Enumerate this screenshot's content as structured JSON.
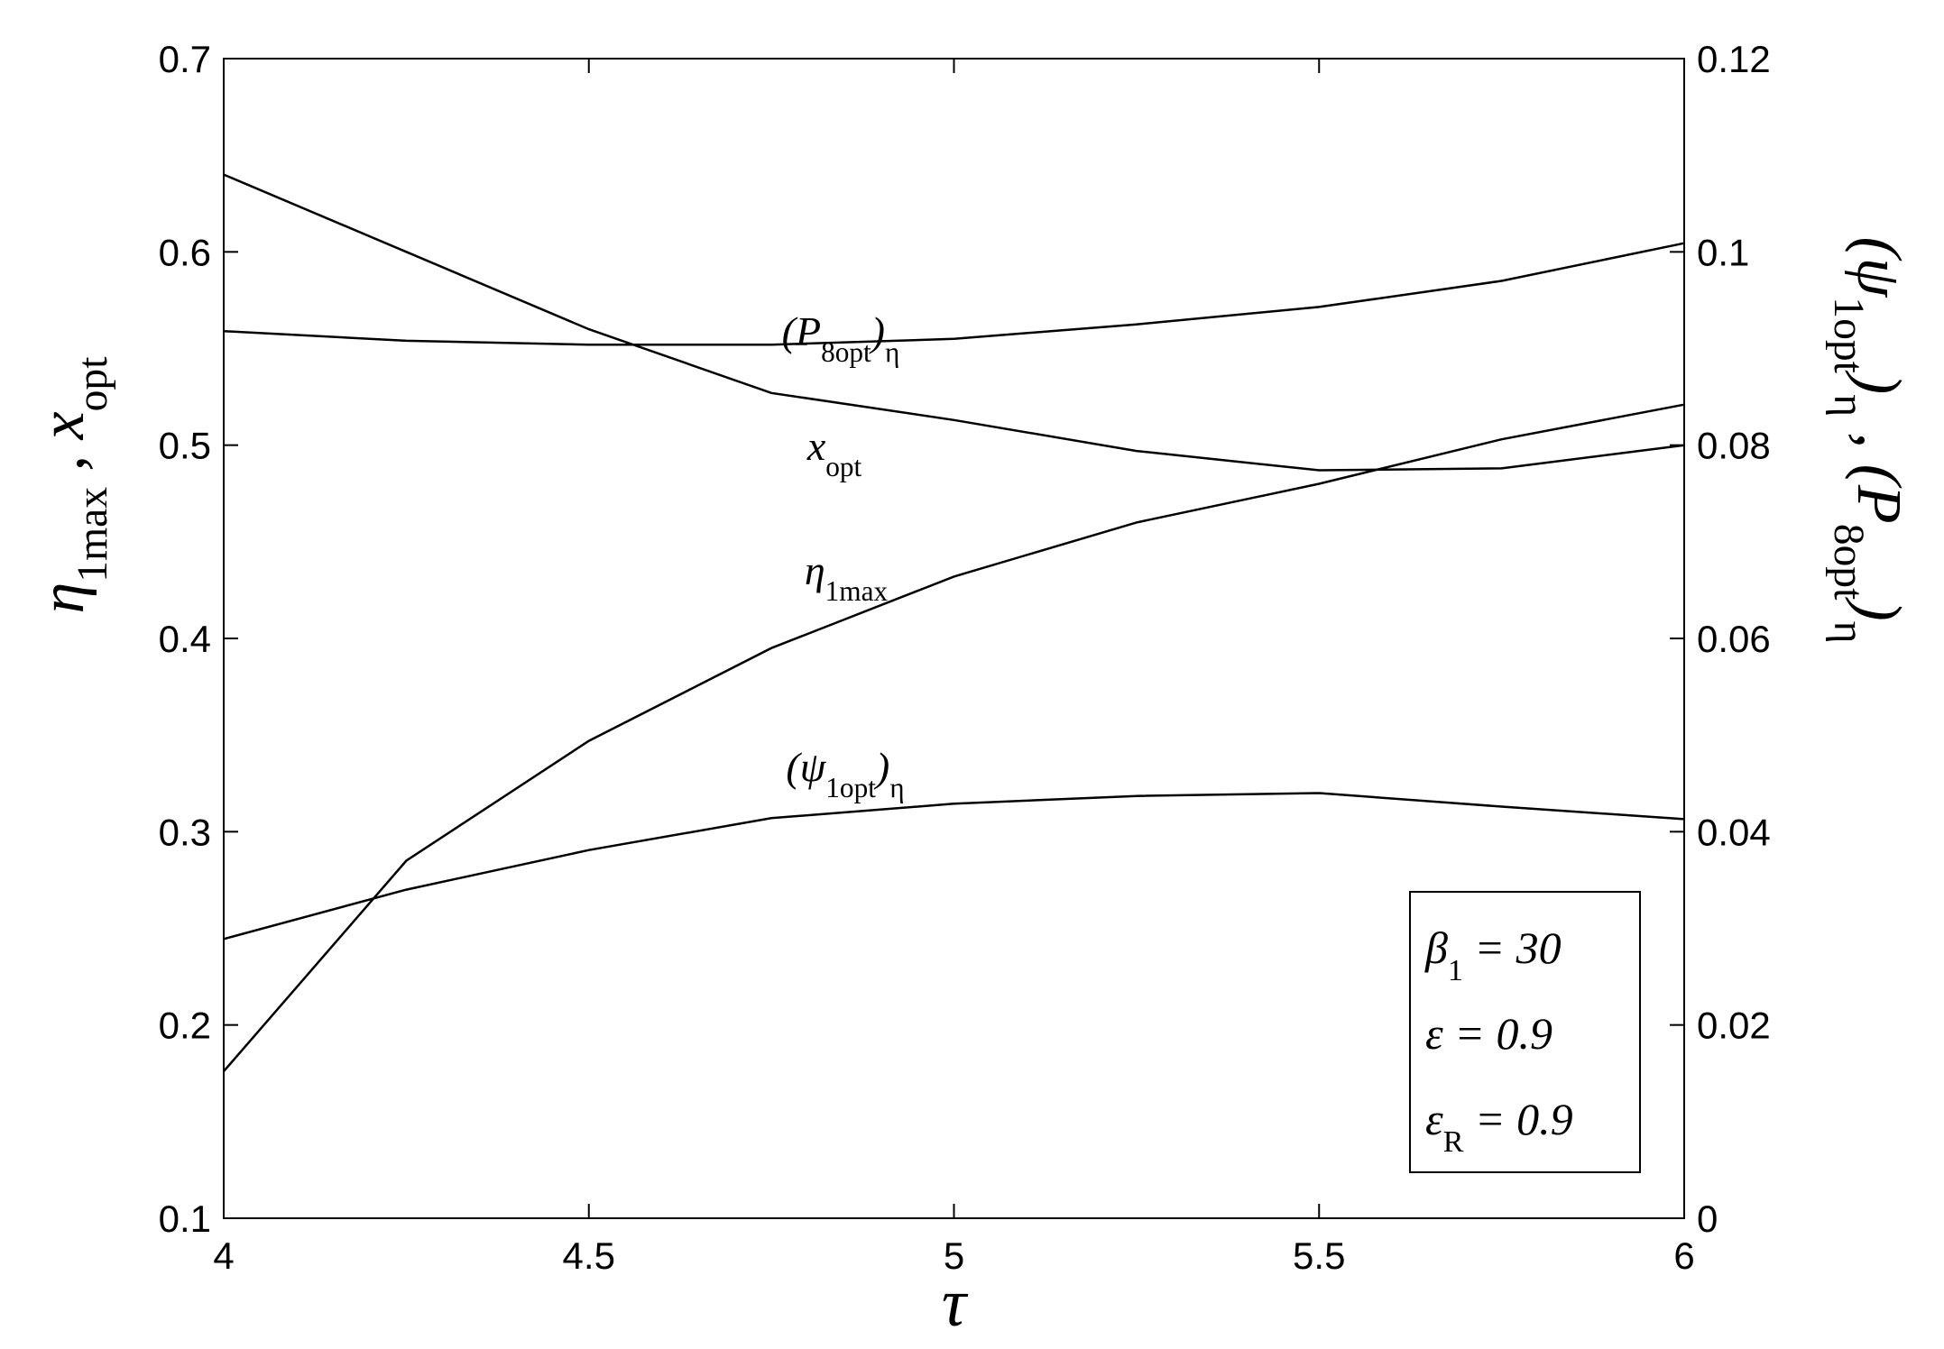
{
  "chart_data": {
    "type": "line",
    "xlabel": [
      "τ"
    ],
    "ylabel": [
      "η",
      "1max",
      " , x",
      "opt"
    ],
    "y2label": [
      "(ψ",
      "1opt",
      ")",
      "η",
      " , (P",
      "8opt",
      ")",
      "η"
    ],
    "x": [
      4,
      4.25,
      4.5,
      4.75,
      5,
      5.25,
      5.5,
      5.75,
      6
    ],
    "xlim": [
      4,
      6
    ],
    "xticks": [
      4,
      4.5,
      5,
      5.5,
      6
    ],
    "ylim": [
      0.1,
      0.7
    ],
    "yticks": [
      0.1,
      0.2,
      0.3,
      0.4,
      0.5,
      0.6,
      0.7
    ],
    "y2lim": [
      0,
      0.12
    ],
    "y2ticks": [
      0,
      0.02,
      0.04,
      0.06,
      0.08,
      0.1,
      0.12
    ],
    "grid": false,
    "series": [
      {
        "name": [
          "η",
          "1max"
        ],
        "color": "#000000",
        "values": [
          0.176,
          0.285,
          0.347,
          0.395,
          0.432,
          0.46,
          0.48,
          0.503,
          0.521
        ]
      },
      {
        "name": [
          "x",
          "opt"
        ],
        "color": "#000000",
        "values": [
          0.64,
          0.6,
          0.56,
          0.527,
          0.513,
          0.497,
          0.487,
          0.488,
          0.5
        ]
      },
      {
        "name": [
          "(P",
          "8opt",
          ")",
          "η"
        ],
        "color": "#000000",
        "axis": "y2",
        "values": [
          0.0918,
          0.0908,
          0.0904,
          0.0904,
          0.091,
          0.0925,
          0.0943,
          0.097,
          0.1009
        ]
      },
      {
        "name": [
          "(ψ",
          "1opt",
          ")",
          "η"
        ],
        "color": "#000000",
        "axis": "y2",
        "values": [
          0.0289,
          0.034,
          0.0381,
          0.0414,
          0.0429,
          0.0437,
          0.044,
          0.0426,
          0.0413
        ]
      }
    ],
    "note": [
      [
        "β",
        "1",
        " = 30"
      ],
      [
        "ε = 0.9"
      ],
      [
        "ε",
        "R",
        " = 0.9"
      ]
    ]
  }
}
